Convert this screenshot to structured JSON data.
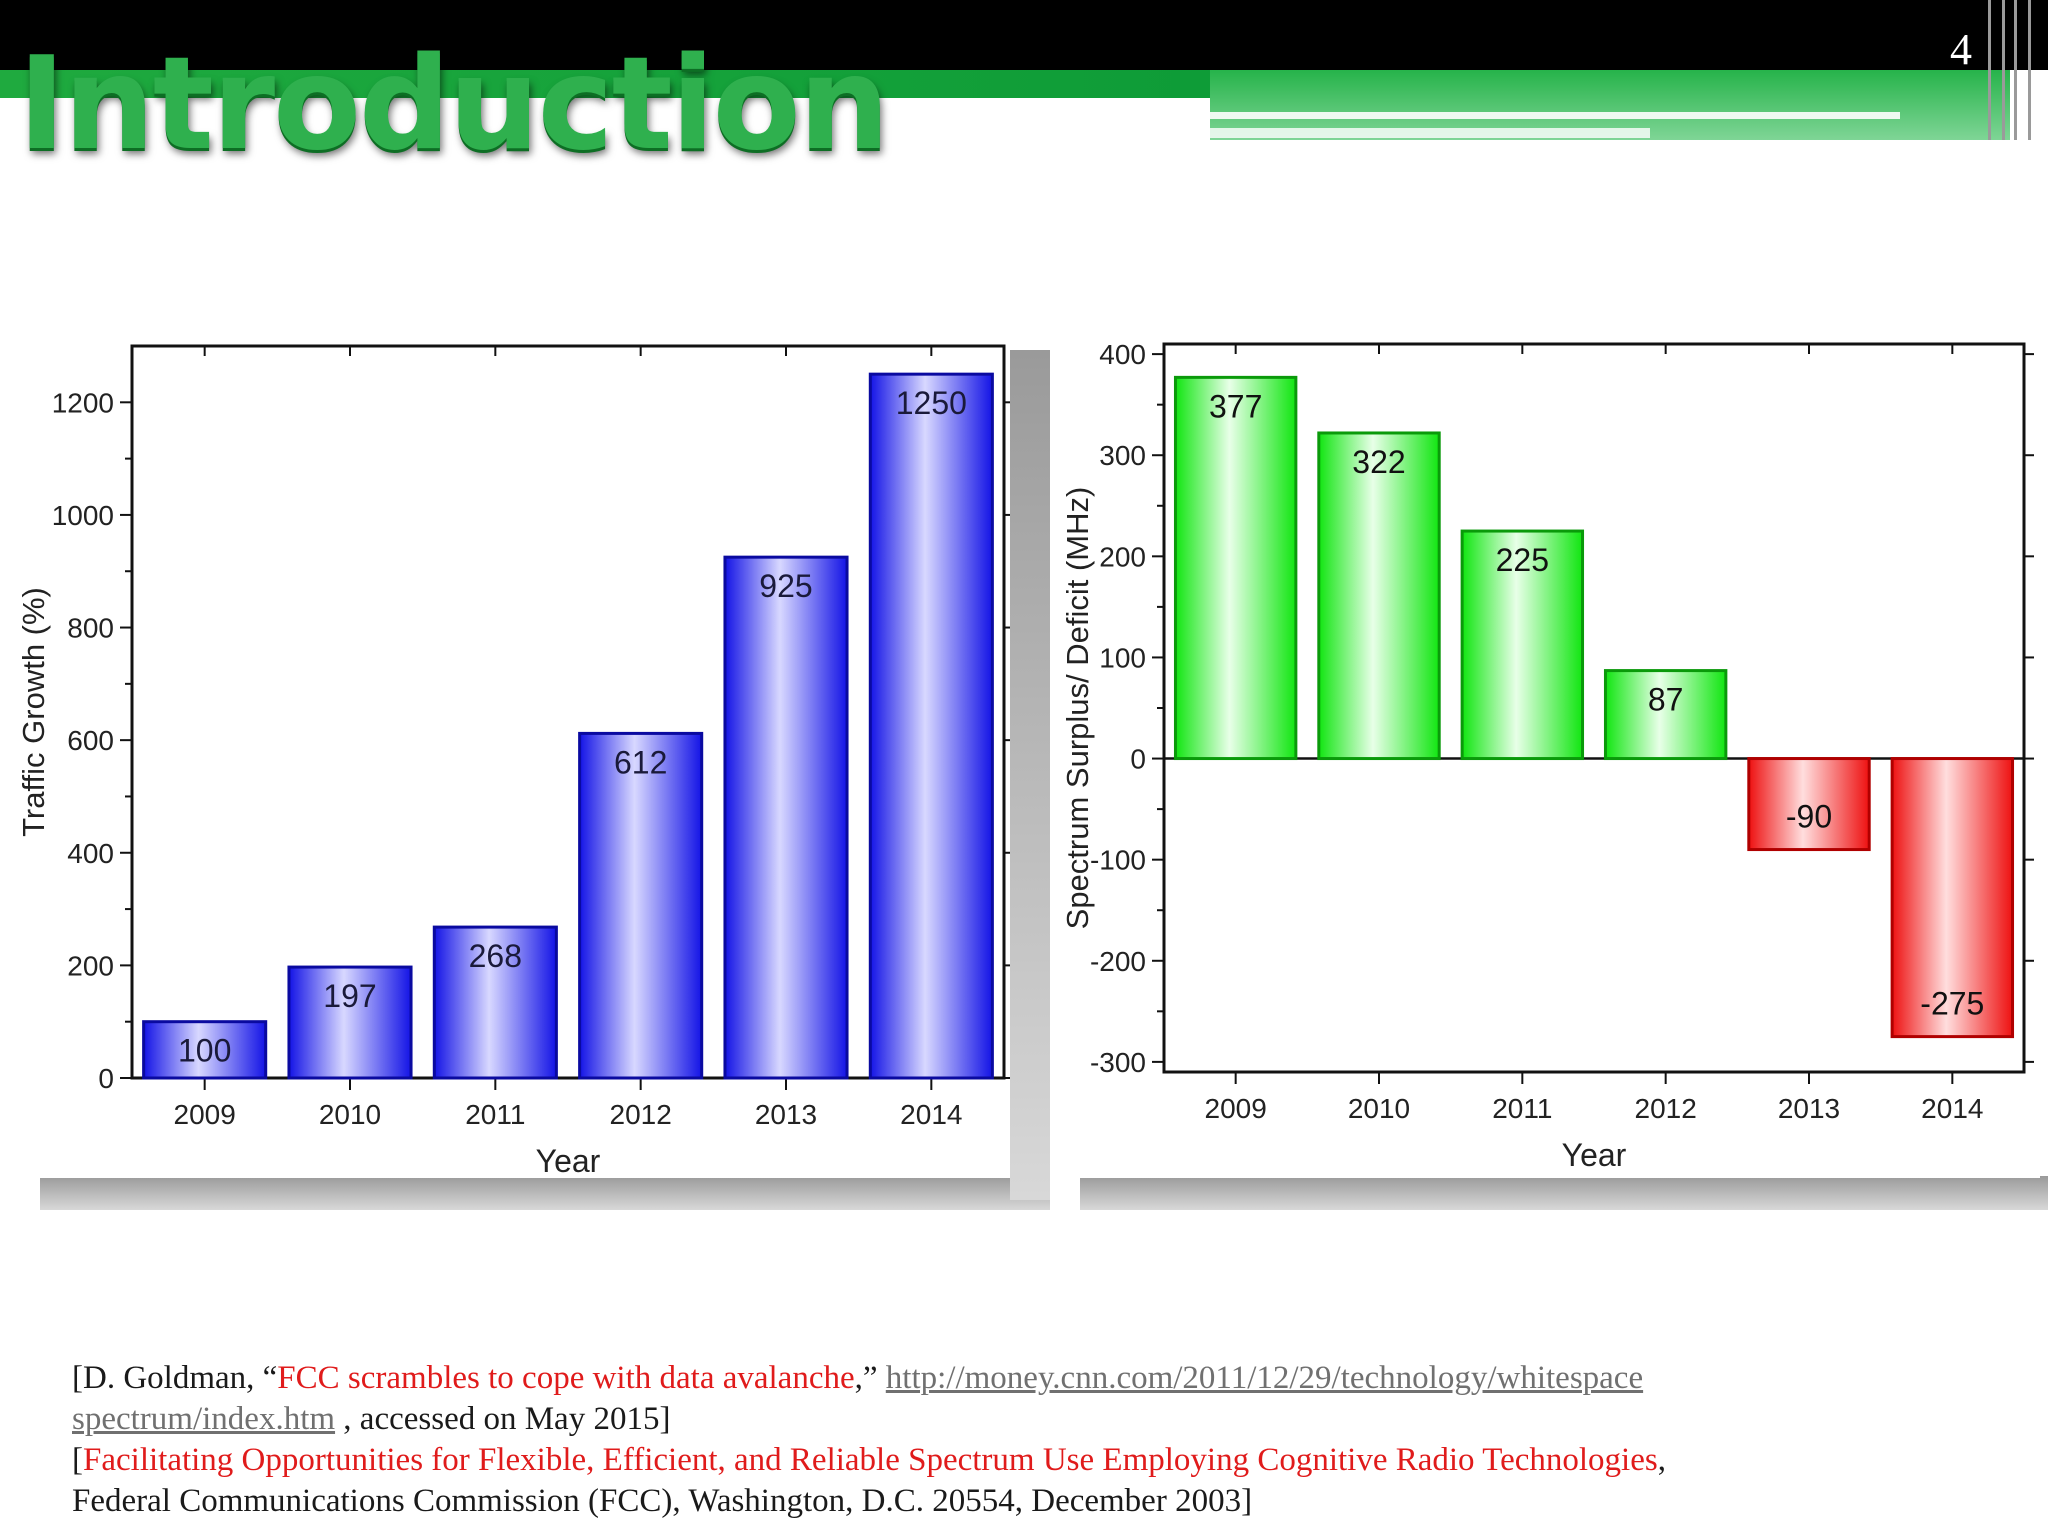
{
  "slide": {
    "number": "4",
    "title": "Introduction"
  },
  "references": {
    "line1_prefix": "[D. Goldman, “",
    "line1_title": "FCC scrambles to cope with data avalanche",
    "line1_mid": ",” ",
    "line1_url": "http://money.cnn.com/2011/12/29/technology/whitespace",
    "line2_url": "spectrum/index.htm",
    "line2_suffix": " , accessed on May 2015]",
    "line3_prefix": "[",
    "line3_title": "Facilitating Opportunities for Flexible, Efficient, and Reliable Spectrum Use Employing Cognitive Radio Technologies",
    "line3_suffix": ",",
    "line4": "Federal Communications Commission (FCC), Washington, D.C. 20554, December 2003]"
  },
  "colors": {
    "title_green": "#2fb04e",
    "bar_blue": "#1414e6",
    "bar_green": "#11e611",
    "bar_red": "#ee1111",
    "reference_red": "#e01b1b"
  },
  "chart_data": [
    {
      "type": "bar",
      "categories": [
        "2009",
        "2010",
        "2011",
        "2012",
        "2013",
        "2014"
      ],
      "values": [
        100,
        197,
        268,
        612,
        925,
        1250
      ],
      "data_labels": [
        "100",
        "197",
        "268",
        "612",
        "925",
        "1250"
      ],
      "title": "",
      "xlabel": "Year",
      "ylabel": "Traffic Growth (%)",
      "ylim": [
        0,
        1300
      ],
      "yticks": [
        "0",
        "200",
        "400",
        "600",
        "800",
        "1000",
        "1200"
      ],
      "grid": false,
      "legend": "none"
    },
    {
      "type": "bar",
      "categories": [
        "2009",
        "2010",
        "2011",
        "2012",
        "2013",
        "2014"
      ],
      "values": [
        377,
        322,
        225,
        87,
        -90,
        -275
      ],
      "data_labels": [
        "377",
        "322",
        "225",
        "87",
        "-90",
        "-275"
      ],
      "title": "",
      "xlabel": "Year",
      "ylabel": "Spectrum Surplus/ Deficit (MHz)",
      "ylim": [
        -310,
        410
      ],
      "yticks": [
        "-300",
        "-200",
        "-100",
        "0",
        "100",
        "200",
        "300",
        "400"
      ],
      "grid": false,
      "legend": "none"
    }
  ]
}
